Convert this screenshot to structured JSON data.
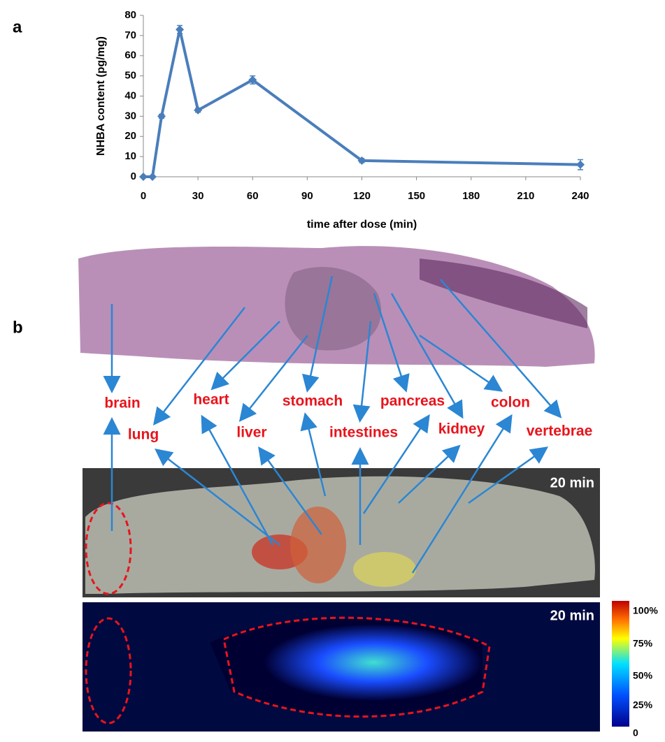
{
  "chart_data": {
    "type": "line",
    "panel_label": "a",
    "x_label": "time after dose (min)",
    "y_label": "NHBA content (pg/mg)",
    "x": [
      0,
      5,
      10,
      20,
      30,
      60,
      120,
      240
    ],
    "values": [
      0,
      0,
      30,
      73,
      33,
      48,
      8,
      6
    ],
    "errors": [
      0,
      0,
      1,
      2,
      1,
      2,
      1,
      2.5
    ],
    "color": "#4a7ebb",
    "xlim": [
      0,
      240
    ],
    "xticks": [
      0,
      30,
      60,
      90,
      120,
      150,
      180,
      210,
      240
    ],
    "ylim": [
      0,
      80
    ],
    "yticks": [
      0,
      10,
      20,
      30,
      40,
      50,
      60,
      70,
      80
    ]
  },
  "panel_b": {
    "panel_label": "b",
    "organs": [
      "brain",
      "heart",
      "stomach",
      "pancreas",
      "colon",
      "lung",
      "liver",
      "intestines",
      "kidney",
      "vertebrae"
    ],
    "time_labels": [
      "20 min",
      "20 min"
    ],
    "colorbar_labels": [
      "100%",
      "75%",
      "50%",
      "25%",
      "0"
    ]
  }
}
